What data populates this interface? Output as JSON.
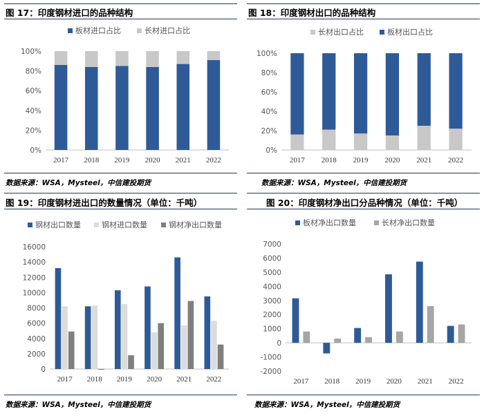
{
  "panels": [
    {
      "title": "图 17：印度钢材进口的品种结构",
      "source": "数据来源：WSA，Mysteel，中信建投期货"
    },
    {
      "title": "图 18：印度钢材出口的品种结构",
      "source": "数据来源：WSA，Mysteel，中信建投期货"
    },
    {
      "title": "图 19：印度钢材进出口的数量情况（单位：千吨）",
      "source": "数据来源：WSA，Mysteel，中信建投期货"
    },
    {
      "title": "图 20：印度钢材净出口分品种情况（单位：千吨）",
      "source": "数据来源：WSA，Mysteel，中信建投期货"
    }
  ],
  "colors": {
    "blue": "#2e5b97",
    "lightgray": "#c8c8c8",
    "verylight": "#dcdcdc",
    "darkgray": "#7f7f7f",
    "rule": "#1f3a5f"
  },
  "chart_data": [
    {
      "type": "bar",
      "stacked": true,
      "categories": [
        "2017",
        "2018",
        "2019",
        "2020",
        "2021",
        "2022"
      ],
      "series": [
        {
          "name": "板材进口占比",
          "color": "#2e5b97",
          "values": [
            86,
            84,
            85,
            84,
            87,
            91
          ]
        },
        {
          "name": "长材进口占比",
          "color": "#c8c8c8",
          "values": [
            14,
            16,
            15,
            16,
            13,
            9
          ]
        }
      ],
      "ylim": [
        0,
        100
      ],
      "ytick_step": 20,
      "ytick_suffix": "%",
      "legend_position": "top",
      "grid": false
    },
    {
      "type": "bar",
      "stacked": true,
      "categories": [
        "2017",
        "2018",
        "2019",
        "2020",
        "2021",
        "2022"
      ],
      "series": [
        {
          "name": "长材出口占比",
          "color": "#c8c8c8",
          "values": [
            16,
            21,
            17,
            15,
            25,
            22
          ]
        },
        {
          "name": "板材出口占比",
          "color": "#2e5b97",
          "values": [
            84,
            79,
            83,
            85,
            75,
            78
          ]
        }
      ],
      "ylim": [
        0,
        100
      ],
      "ytick_step": 20,
      "ytick_suffix": "%",
      "legend_position": "top",
      "grid": false
    },
    {
      "type": "bar",
      "stacked": false,
      "categories": [
        "2017",
        "2018",
        "2019",
        "2020",
        "2021",
        "2022"
      ],
      "series": [
        {
          "name": "钢材出口数量",
          "color": "#2e5b97",
          "values": [
            13200,
            8200,
            10300,
            10800,
            14600,
            9500
          ]
        },
        {
          "name": "钢材进口数量",
          "color": "#dcdcdc",
          "values": [
            8200,
            8300,
            8500,
            4800,
            5700,
            6300
          ]
        },
        {
          "name": "钢材净出口数量",
          "color": "#7f7f7f",
          "values": [
            4900,
            -100,
            1800,
            6000,
            8900,
            3200
          ]
        }
      ],
      "ylim": [
        0,
        16000
      ],
      "ytick_step": 2000,
      "ytick_suffix": "",
      "legend_position": "top",
      "grid": false
    },
    {
      "type": "bar",
      "stacked": false,
      "categories": [
        "2017",
        "2018",
        "2019",
        "2020",
        "2021",
        "2022"
      ],
      "series": [
        {
          "name": "板材净出口数量",
          "color": "#2e5b97",
          "values": [
            3150,
            -750,
            1050,
            4850,
            5750,
            1200
          ]
        },
        {
          "name": "长材净出口数量",
          "color": "#a6a6a6",
          "values": [
            800,
            300,
            400,
            800,
            2600,
            1300
          ]
        }
      ],
      "ylim": [
        -2000,
        7000
      ],
      "ytick_step": 1000,
      "ytick_suffix": "",
      "legend_position": "top",
      "grid": false
    }
  ]
}
